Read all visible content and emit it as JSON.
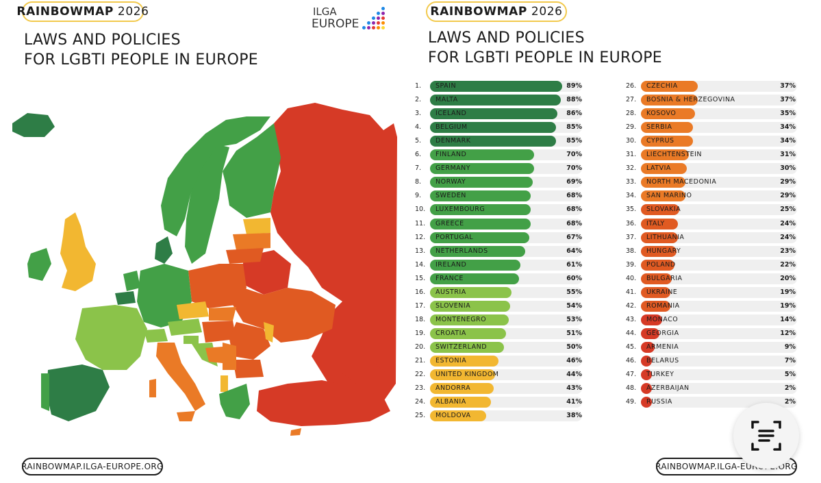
{
  "header_left": {
    "badge": "RAINBOWMAP",
    "year": "2026",
    "title": "LAWS AND POLICIES\nFOR LGBTI PEOPLE IN EUROPE"
  },
  "header_right": {
    "badge": "RAINBOWMAP",
    "year": "2026",
    "title": "LAWS AND POLICIES\nFOR LGBTI PEOPLE IN EUROPE"
  },
  "logo": {
    "line1": "ILGA",
    "line2": "EUROPE"
  },
  "footer_left": "RAINBOWMAP.ILGA-EUROPE.ORG",
  "footer_right": "RAINBOWMAP.ILGA-EUROPE.ORG",
  "colors": {
    "darkgreen": "#2e7d46",
    "green": "#43a047",
    "lightgreen": "#8bc34a",
    "yellow": "#f2b731",
    "orange": "#ea7a26",
    "deeporange": "#e05a22",
    "red": "#d63a26",
    "track": "#efefef"
  },
  "map": {
    "description_icon": "europe-map"
  },
  "chart_data": {
    "type": "bar",
    "orientation": "horizontal",
    "unit": "%",
    "xlim": [
      0,
      100
    ],
    "rows": [
      {
        "rank": "1.",
        "country": "SPAIN",
        "value": 89
      },
      {
        "rank": "2.",
        "country": "MALTA",
        "value": 88
      },
      {
        "rank": "3.",
        "country": "ICELAND",
        "value": 86
      },
      {
        "rank": "4.",
        "country": "BELGIUM",
        "value": 85
      },
      {
        "rank": "5.",
        "country": "DENMARK",
        "value": 85
      },
      {
        "rank": "6.",
        "country": "FINLAND",
        "value": 70
      },
      {
        "rank": "7.",
        "country": "GERMANY",
        "value": 70
      },
      {
        "rank": "8.",
        "country": "NORWAY",
        "value": 69
      },
      {
        "rank": "9.",
        "country": "SWEDEN",
        "value": 68
      },
      {
        "rank": "10.",
        "country": "LUXEMBOURG",
        "value": 68
      },
      {
        "rank": "11.",
        "country": "GREECE",
        "value": 68
      },
      {
        "rank": "12.",
        "country": "PORTUGAL",
        "value": 67
      },
      {
        "rank": "13.",
        "country": "NETHERLANDS",
        "value": 64
      },
      {
        "rank": "14.",
        "country": "IRELAND",
        "value": 61
      },
      {
        "rank": "15.",
        "country": "FRANCE",
        "value": 60
      },
      {
        "rank": "16.",
        "country": "AUSTRIA",
        "value": 55
      },
      {
        "rank": "17.",
        "country": "SLOVENIA",
        "value": 54
      },
      {
        "rank": "18.",
        "country": "MONTENEGRO",
        "value": 53
      },
      {
        "rank": "19.",
        "country": "CROATIA",
        "value": 51
      },
      {
        "rank": "20.",
        "country": "SWITZERLAND",
        "value": 50
      },
      {
        "rank": "21.",
        "country": "ESTONIA",
        "value": 46
      },
      {
        "rank": "22.",
        "country": "UNITED KINGDOM",
        "value": 44
      },
      {
        "rank": "23.",
        "country": "ANDORRA",
        "value": 43
      },
      {
        "rank": "24.",
        "country": "ALBANIA",
        "value": 41
      },
      {
        "rank": "25.",
        "country": "MOLDOVA",
        "value": 38
      },
      {
        "rank": "26.",
        "country": "CZECHIA",
        "value": 37
      },
      {
        "rank": "27.",
        "country": "BOSNIA & HERZEGOVINA",
        "value": 37
      },
      {
        "rank": "28.",
        "country": "KOSOVO",
        "value": 35
      },
      {
        "rank": "29.",
        "country": "SERBIA",
        "value": 34
      },
      {
        "rank": "30.",
        "country": "CYPRUS",
        "value": 34
      },
      {
        "rank": "31.",
        "country": "LIECHTENSTEIN",
        "value": 31
      },
      {
        "rank": "32.",
        "country": "LATVIA",
        "value": 30
      },
      {
        "rank": "33.",
        "country": "NORTH MACEDONIA",
        "value": 29
      },
      {
        "rank": "34.",
        "country": "SAN MARINO",
        "value": 29
      },
      {
        "rank": "35.",
        "country": "SLOVAKIA",
        "value": 25
      },
      {
        "rank": "36.",
        "country": "ITALY",
        "value": 24
      },
      {
        "rank": "37.",
        "country": "LITHUANIA",
        "value": 24
      },
      {
        "rank": "38.",
        "country": "HUNGARY",
        "value": 23
      },
      {
        "rank": "39.",
        "country": "POLAND",
        "value": 22
      },
      {
        "rank": "40.",
        "country": "BULGARIA",
        "value": 20
      },
      {
        "rank": "41.",
        "country": "UKRAINE",
        "value": 19
      },
      {
        "rank": "42.",
        "country": "ROMANIA",
        "value": 19
      },
      {
        "rank": "43.",
        "country": "MONACO",
        "value": 14
      },
      {
        "rank": "44.",
        "country": "GEORGIA",
        "value": 12
      },
      {
        "rank": "45.",
        "country": "ARMENIA",
        "value": 9
      },
      {
        "rank": "46.",
        "country": "BELARUS",
        "value": 7
      },
      {
        "rank": "47.",
        "country": "TURKEY",
        "value": 5
      },
      {
        "rank": "48.",
        "country": "AZERBAIJAN",
        "value": 2
      },
      {
        "rank": "49.",
        "country": "RUSSIA",
        "value": 2
      }
    ]
  }
}
